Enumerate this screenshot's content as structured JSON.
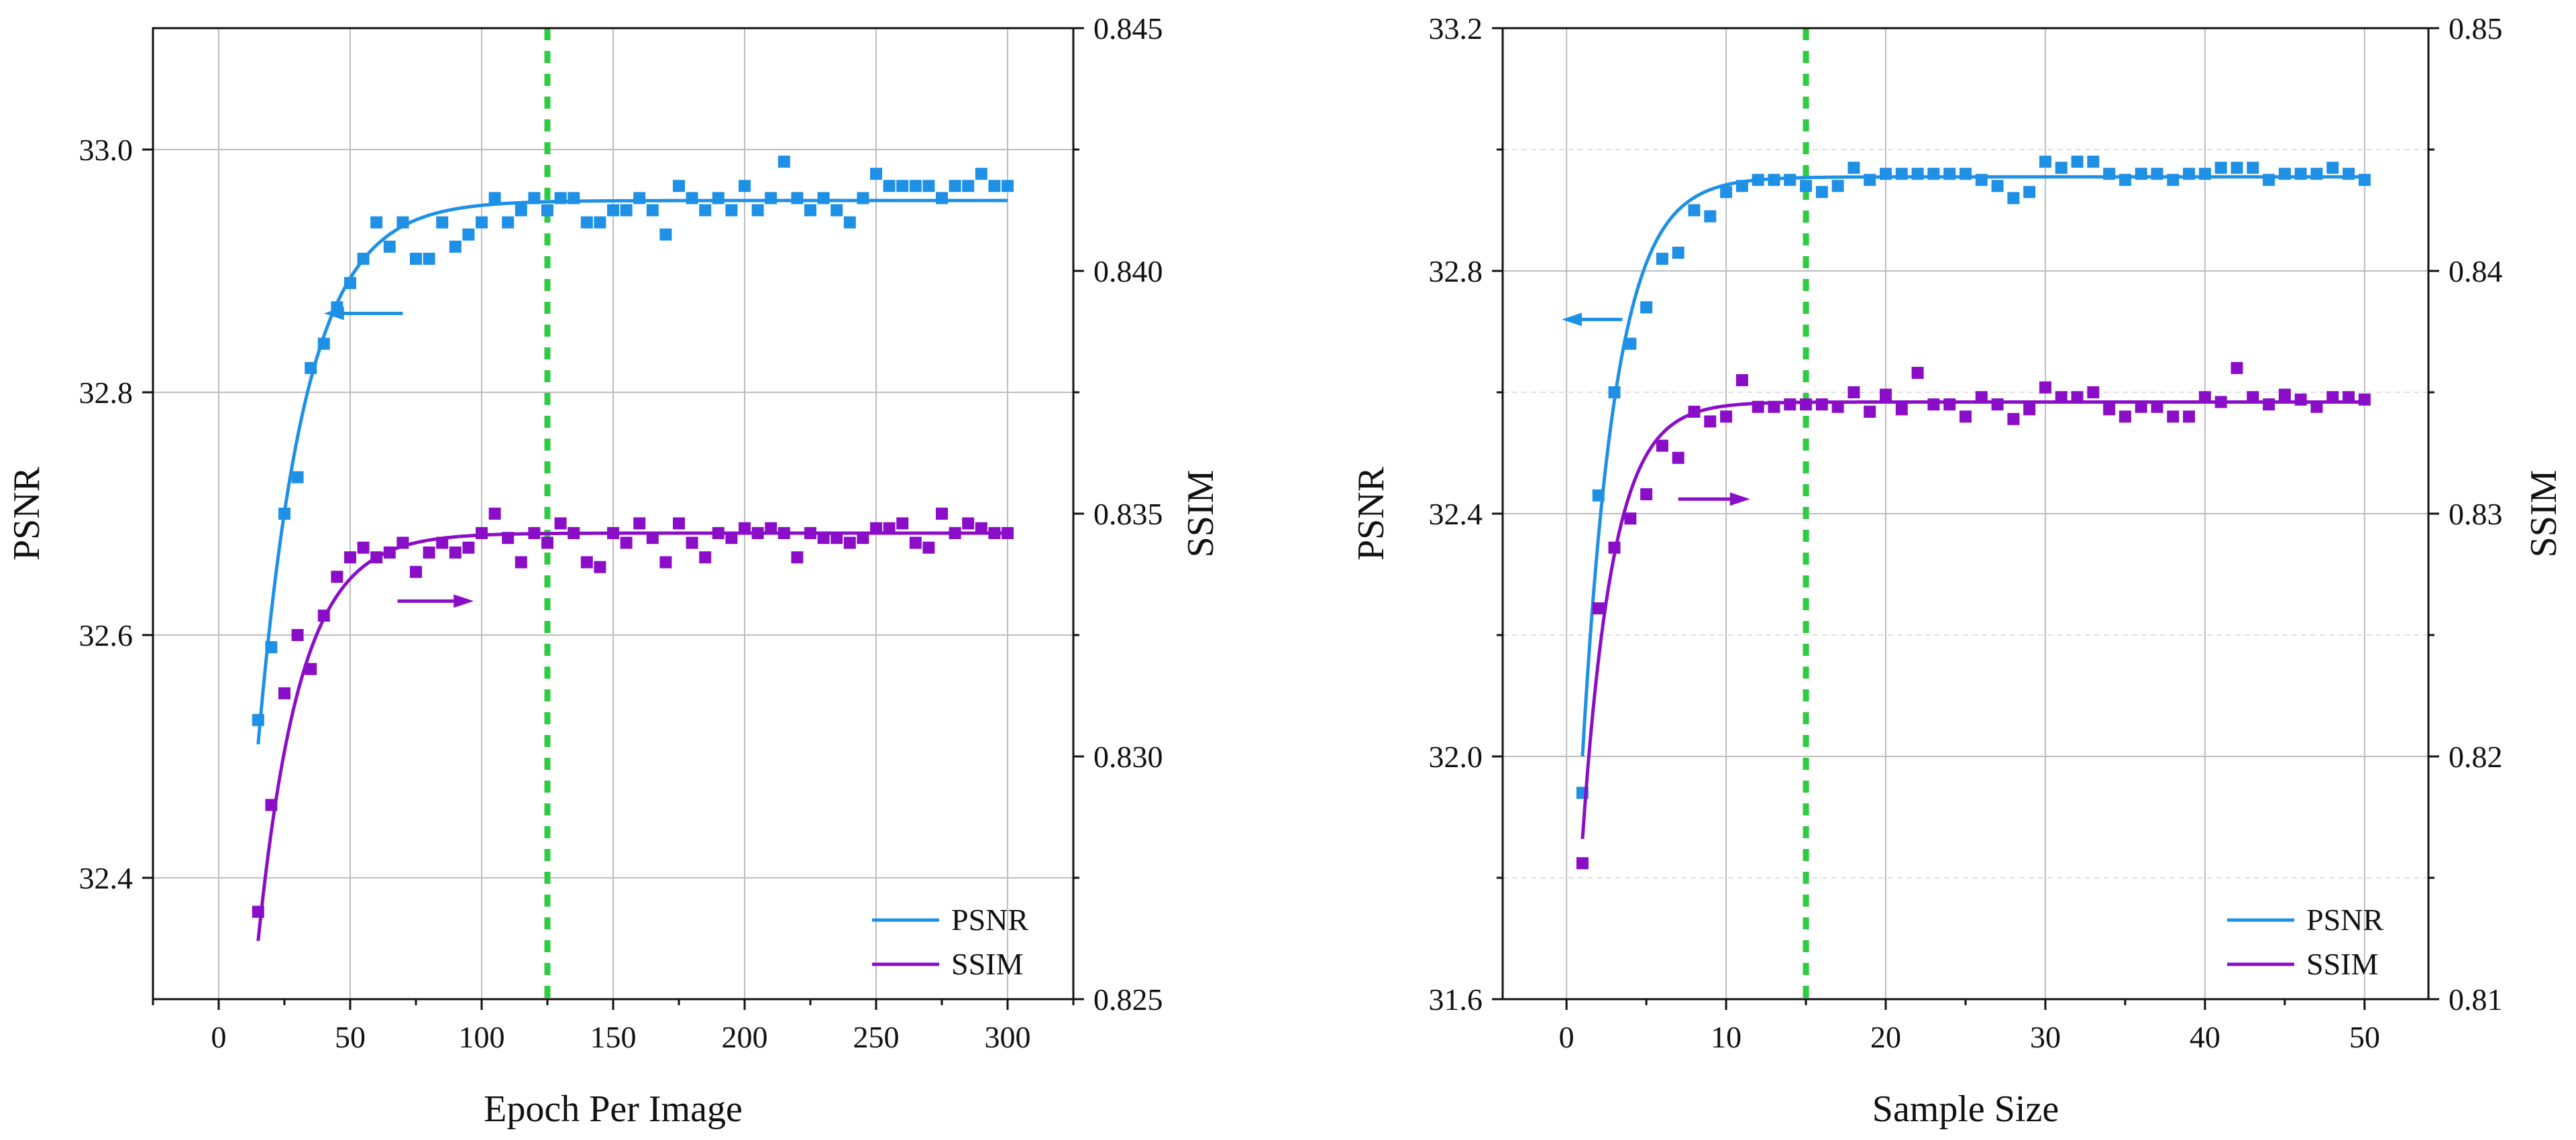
{
  "colors": {
    "psnr": "#1E90E6",
    "ssim": "#8A0EC8",
    "vline": "#2ECC40",
    "grid_major": "#BDBDBD",
    "grid_minor": "#E0E0E0",
    "axis": "#111111"
  },
  "chart_data": [
    {
      "type": "scatter+line",
      "xlabel": "Epoch Per Image",
      "ylabel_left": "PSNR",
      "ylabel_right": "SSIM",
      "xlim": [
        -25,
        325
      ],
      "ylim_left": [
        32.3,
        33.1
      ],
      "ylim_right": [
        0.825,
        0.845
      ],
      "xticks": [
        0,
        50,
        100,
        150,
        200,
        250,
        300
      ],
      "xtick_labels": [
        "0",
        "50",
        "100",
        "150",
        "200",
        "250",
        "300"
      ],
      "yticks_left": [
        32.4,
        32.6,
        32.8,
        33.0
      ],
      "ytick_labels_left": [
        "32.4",
        "32.6",
        "32.8",
        "33.0"
      ],
      "yticks_right": [
        0.825,
        0.83,
        0.835,
        0.84,
        0.845
      ],
      "ytick_labels_right": [
        "0.825",
        "0.830",
        "0.835",
        "0.840",
        "0.845"
      ],
      "vline_x": 125,
      "legend": [
        "PSNR",
        "SSIM"
      ],
      "legend_position": "bottom-right",
      "arrows": [
        {
          "series": "PSNR",
          "direction": "left",
          "x_from": 70,
          "x_to": 40,
          "y": 32.865,
          "axis": "left"
        },
        {
          "series": "SSIM",
          "direction": "right",
          "x_from": 68,
          "x_to": 97,
          "y": 0.8332,
          "axis": "right"
        }
      ],
      "series": [
        {
          "name": "PSNR",
          "axis": "left",
          "x": [
            15,
            20,
            25,
            30,
            35,
            40,
            45,
            50,
            55,
            60,
            65,
            70,
            75,
            80,
            85,
            90,
            95,
            100,
            105,
            110,
            115,
            120,
            125,
            130,
            135,
            140,
            145,
            150,
            155,
            160,
            165,
            170,
            175,
            180,
            185,
            190,
            195,
            200,
            205,
            210,
            215,
            220,
            225,
            230,
            235,
            240,
            245,
            250,
            255,
            260,
            265,
            270,
            275,
            280,
            285,
            290,
            295,
            300
          ],
          "values": [
            32.53,
            32.59,
            32.7,
            32.73,
            32.82,
            32.84,
            32.87,
            32.89,
            32.91,
            32.94,
            32.92,
            32.94,
            32.91,
            32.91,
            32.94,
            32.92,
            32.93,
            32.94,
            32.96,
            32.94,
            32.95,
            32.96,
            32.95,
            32.96,
            32.96,
            32.94,
            32.94,
            32.95,
            32.95,
            32.96,
            32.95,
            32.93,
            32.97,
            32.96,
            32.95,
            32.96,
            32.95,
            32.97,
            32.95,
            32.96,
            32.99,
            32.96,
            32.95,
            32.96,
            32.95,
            32.94,
            32.96,
            32.98,
            32.97,
            32.97,
            32.97,
            32.97,
            32.96,
            32.97,
            32.97,
            32.98,
            32.97,
            32.97
          ],
          "fit": {
            "asymptote": 32.958,
            "start": 32.51,
            "x0": 15,
            "tau": 18
          }
        },
        {
          "name": "SSIM",
          "axis": "right",
          "x": [
            15,
            20,
            25,
            30,
            35,
            40,
            45,
            50,
            55,
            60,
            65,
            70,
            75,
            80,
            85,
            90,
            95,
            100,
            105,
            110,
            115,
            120,
            125,
            130,
            135,
            140,
            145,
            150,
            155,
            160,
            165,
            170,
            175,
            180,
            185,
            190,
            195,
            200,
            205,
            210,
            215,
            220,
            225,
            230,
            235,
            240,
            245,
            250,
            255,
            260,
            265,
            270,
            275,
            280,
            285,
            290,
            295,
            300
          ],
          "values": [
            0.8268,
            0.829,
            0.8313,
            0.8325,
            0.8318,
            0.8329,
            0.8337,
            0.8341,
            0.8343,
            0.8341,
            0.8342,
            0.8344,
            0.8338,
            0.8342,
            0.8344,
            0.8342,
            0.8343,
            0.8346,
            0.835,
            0.8345,
            0.834,
            0.8346,
            0.8344,
            0.8348,
            0.8346,
            0.834,
            0.8339,
            0.8346,
            0.8344,
            0.8348,
            0.8345,
            0.834,
            0.8348,
            0.8344,
            0.8341,
            0.8346,
            0.8345,
            0.8347,
            0.8346,
            0.8347,
            0.8346,
            0.8341,
            0.8346,
            0.8345,
            0.8345,
            0.8344,
            0.8345,
            0.8347,
            0.8347,
            0.8348,
            0.8344,
            0.8343,
            0.835,
            0.8346,
            0.8348,
            0.8347,
            0.8346,
            0.8346
          ],
          "fit": {
            "asymptote": 0.8346,
            "start": 0.8262,
            "x0": 15,
            "tau": 16
          }
        }
      ]
    },
    {
      "type": "scatter+line",
      "xlabel": "Sample Size",
      "ylabel_left": "PSNR",
      "ylabel_right": "SSIM",
      "xlim": [
        -4,
        54
      ],
      "ylim_left": [
        31.6,
        33.2
      ],
      "ylim_right": [
        0.81,
        0.85
      ],
      "xticks": [
        0,
        10,
        20,
        30,
        40,
        50
      ],
      "xtick_labels": [
        "0",
        "10",
        "20",
        "30",
        "40",
        "50"
      ],
      "yticks_left": [
        31.6,
        32.0,
        32.4,
        32.8,
        33.2
      ],
      "ytick_labels_left": [
        "31.6",
        "32.0",
        "32.4",
        "32.8",
        "33.2"
      ],
      "yticks_right": [
        0.81,
        0.82,
        0.83,
        0.84,
        0.85
      ],
      "ytick_labels_right": [
        "0.81",
        "0.82",
        "0.83",
        "0.84",
        "0.85"
      ],
      "vline_x": 15,
      "legend": [
        "PSNR",
        "SSIM"
      ],
      "legend_position": "bottom-right",
      "arrows": [
        {
          "series": "PSNR",
          "direction": "left",
          "x_from": 3.5,
          "x_to": -0.3,
          "y": 32.72,
          "axis": "left"
        },
        {
          "series": "SSIM",
          "direction": "right",
          "x_from": 7,
          "x_to": 11.5,
          "y": 0.8306,
          "axis": "right"
        }
      ],
      "series": [
        {
          "name": "PSNR",
          "axis": "left",
          "x": [
            1,
            2,
            3,
            4,
            5,
            6,
            7,
            8,
            9,
            10,
            11,
            12,
            13,
            14,
            15,
            16,
            17,
            18,
            19,
            20,
            21,
            22,
            23,
            24,
            25,
            26,
            27,
            28,
            29,
            30,
            31,
            32,
            33,
            34,
            35,
            36,
            37,
            38,
            39,
            40,
            41,
            42,
            43,
            44,
            45,
            46,
            47,
            48,
            49,
            50
          ],
          "values": [
            31.94,
            32.43,
            32.6,
            32.68,
            32.74,
            32.82,
            32.83,
            32.9,
            32.89,
            32.93,
            32.94,
            32.95,
            32.95,
            32.95,
            32.94,
            32.93,
            32.94,
            32.97,
            32.95,
            32.96,
            32.96,
            32.96,
            32.96,
            32.96,
            32.96,
            32.95,
            32.94,
            32.92,
            32.93,
            32.98,
            32.97,
            32.98,
            32.98,
            32.96,
            32.95,
            32.96,
            32.96,
            32.95,
            32.96,
            32.96,
            32.97,
            32.97,
            32.97,
            32.95,
            32.96,
            32.96,
            32.96,
            32.97,
            32.96,
            32.95
          ],
          "fit": {
            "asymptote": 32.955,
            "start": 32.0,
            "x0": 1,
            "tau": 2.1
          }
        },
        {
          "name": "SSIM",
          "axis": "right",
          "x": [
            1,
            2,
            3,
            4,
            5,
            6,
            7,
            8,
            9,
            10,
            11,
            12,
            13,
            14,
            15,
            16,
            17,
            18,
            19,
            20,
            21,
            22,
            23,
            24,
            25,
            26,
            27,
            28,
            29,
            30,
            31,
            32,
            33,
            34,
            35,
            36,
            37,
            38,
            39,
            40,
            41,
            42,
            43,
            44,
            45,
            46,
            47,
            48,
            49,
            50
          ],
          "values": [
            0.8156,
            0.8261,
            0.8286,
            0.8298,
            0.8308,
            0.8328,
            0.8323,
            0.8342,
            0.8338,
            0.834,
            0.8355,
            0.8344,
            0.8344,
            0.8345,
            0.8345,
            0.8345,
            0.8344,
            0.835,
            0.8342,
            0.8349,
            0.8343,
            0.8358,
            0.8345,
            0.8345,
            0.834,
            0.8348,
            0.8345,
            0.8339,
            0.8343,
            0.8352,
            0.8348,
            0.8348,
            0.835,
            0.8343,
            0.834,
            0.8344,
            0.8344,
            0.834,
            0.834,
            0.8348,
            0.8346,
            0.836,
            0.8348,
            0.8345,
            0.8349,
            0.8347,
            0.8344,
            0.8348,
            0.8348,
            0.8347
          ],
          "fit": {
            "asymptote": 0.8346,
            "start": 0.8166,
            "x0": 1,
            "tau": 1.9
          }
        }
      ]
    }
  ]
}
